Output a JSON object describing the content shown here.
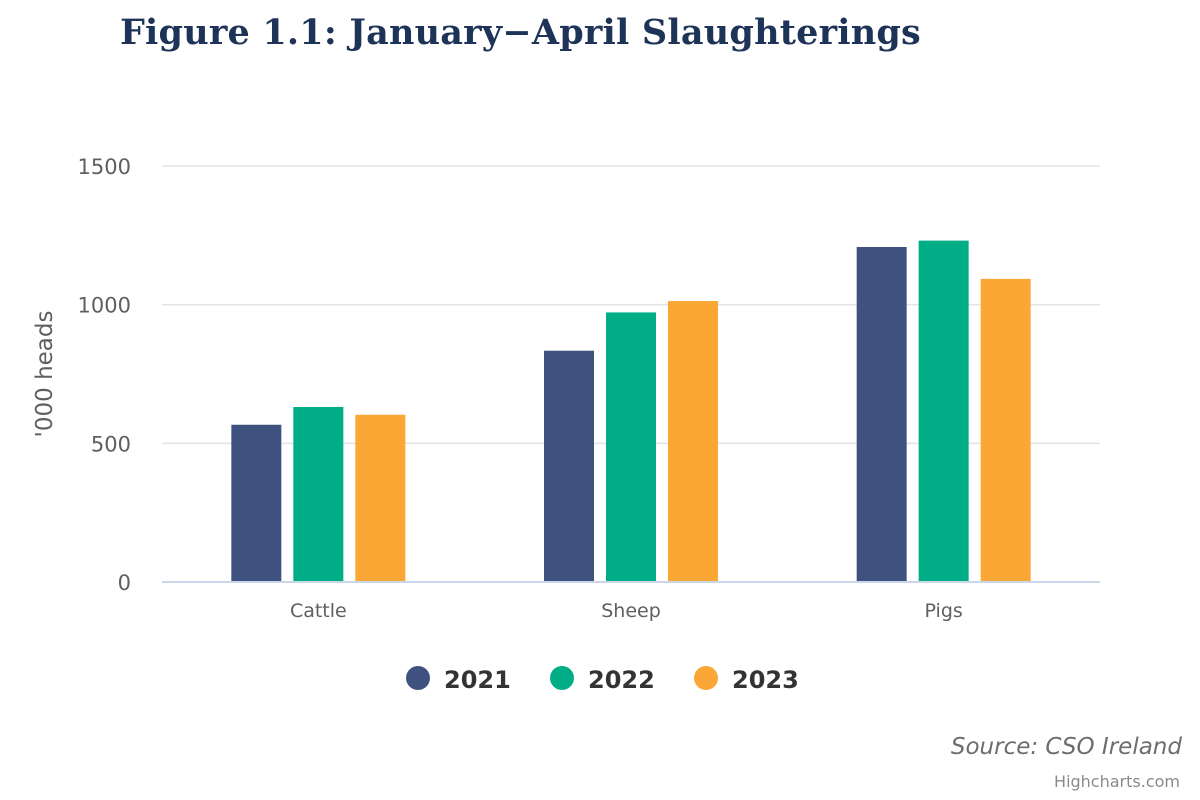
{
  "chart_data": {
    "type": "bar",
    "title": "Figure 1.1: January−April Slaughterings",
    "ylabel": "'000 heads",
    "xlabel": "",
    "ylim": [
      0,
      1500
    ],
    "yticks": [
      0,
      500,
      1000,
      1500
    ],
    "grid": true,
    "legend_position": "bottom-center",
    "categories": [
      "Cattle",
      "Sheep",
      "Pigs"
    ],
    "series": [
      {
        "name": "2021",
        "color": "#3f527f",
        "values": [
          567,
          834,
          1208
        ]
      },
      {
        "name": "2022",
        "color": "#00ad86",
        "values": [
          631,
          972,
          1231
        ]
      },
      {
        "name": "2023",
        "color": "#fba735",
        "values": [
          603,
          1013,
          1093
        ]
      }
    ]
  },
  "source_label": "Source: CSO Ireland",
  "credits_label": "Highcharts.com"
}
